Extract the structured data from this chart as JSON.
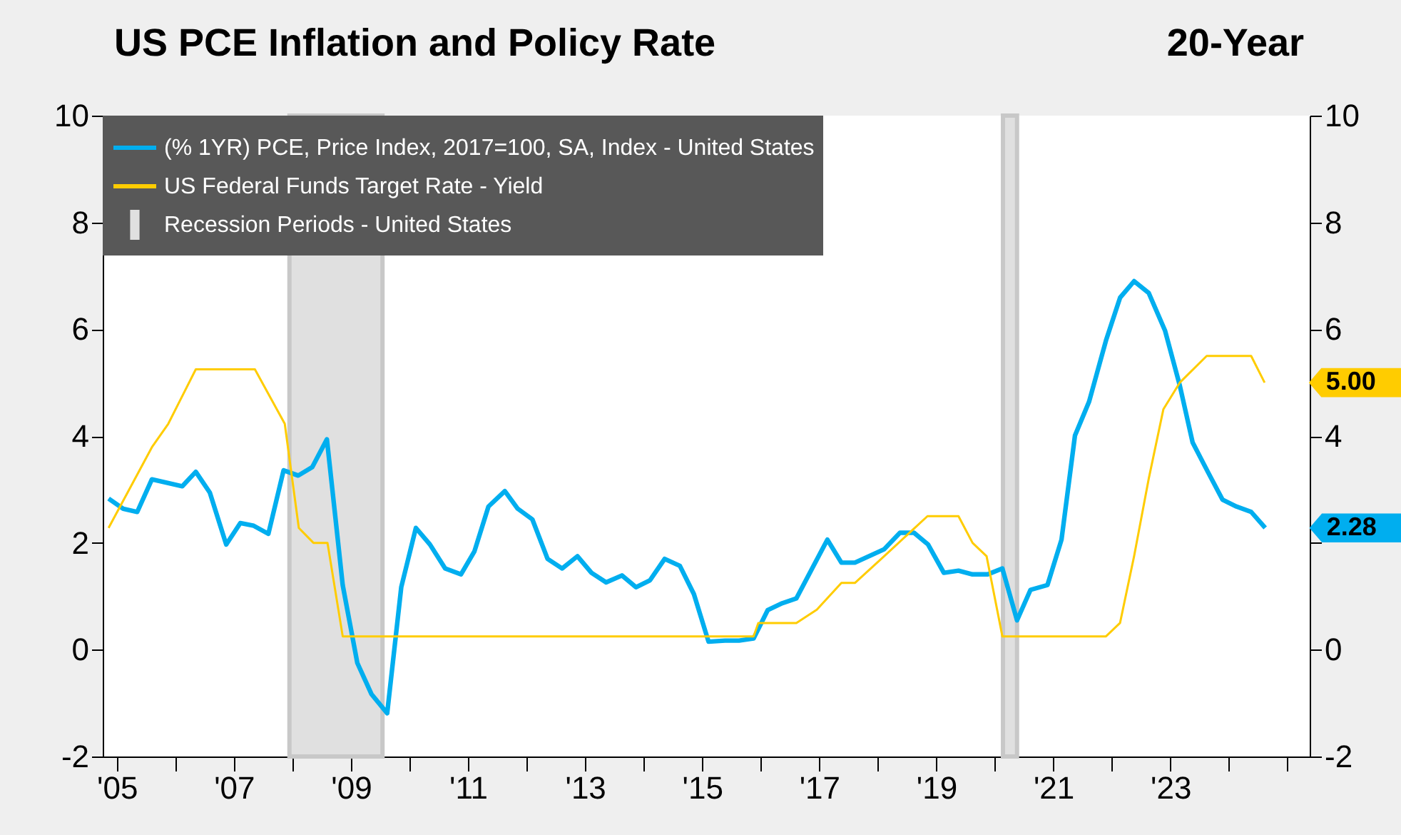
{
  "chart_data": {
    "type": "line",
    "title": "US PCE Inflation and Policy Rate",
    "subtitle": "20-Year",
    "xlim": [
      2004.76,
      2025.38
    ],
    "xticks": [
      {
        "value": 2005,
        "label": "'05"
      },
      {
        "value": 2006,
        "label": null
      },
      {
        "value": 2007,
        "label": "'07"
      },
      {
        "value": 2008,
        "label": null
      },
      {
        "value": 2009,
        "label": "'09"
      },
      {
        "value": 2010,
        "label": null
      },
      {
        "value": 2011,
        "label": "'11"
      },
      {
        "value": 2012,
        "label": null
      },
      {
        "value": 2013,
        "label": "'13"
      },
      {
        "value": 2014,
        "label": null
      },
      {
        "value": 2015,
        "label": "'15"
      },
      {
        "value": 2016,
        "label": null
      },
      {
        "value": 2017,
        "label": "'17"
      },
      {
        "value": 2018,
        "label": null
      },
      {
        "value": 2019,
        "label": "'19"
      },
      {
        "value": 2020,
        "label": null
      },
      {
        "value": 2021,
        "label": "'21"
      },
      {
        "value": 2022,
        "label": null
      },
      {
        "value": 2023,
        "label": "'23"
      },
      {
        "value": 2024,
        "label": null
      },
      {
        "value": 2025,
        "label": null
      }
    ],
    "ylim": [
      -2,
      10
    ],
    "yticks": [
      -2,
      0,
      2,
      4,
      6,
      8,
      10
    ],
    "y2lim": [
      -2,
      10
    ],
    "y2ticks": [
      -2,
      0,
      {
        "value": 2,
        "label": null
      },
      4,
      6,
      8,
      10
    ],
    "legend": "top left",
    "grid": false,
    "annotations": [
      {
        "text": "5.00",
        "x": 2024.61,
        "y": 5.0
      },
      {
        "text": "2.28",
        "x": 2024.62,
        "y": 2.28
      }
    ],
    "series": [
      {
        "name": "(% 1YR) PCE, Price Index, 2017=100, SA, Index - United States",
        "color": "#00aeef",
        "x": [
          2004.86,
          2005.11,
          2005.35,
          2005.6,
          2005.88,
          2006.12,
          2006.35,
          2006.59,
          2006.87,
          2007.11,
          2007.34,
          2007.59,
          2007.85,
          2008.1,
          2008.34,
          2008.59,
          2008.86,
          2009.11,
          2009.35,
          2009.62,
          2009.86,
          2010.11,
          2010.35,
          2010.61,
          2010.88,
          2011.11,
          2011.35,
          2011.63,
          2011.85,
          2012.1,
          2012.36,
          2012.61,
          2012.87,
          2013.11,
          2013.36,
          2013.63,
          2013.87,
          2014.11,
          2014.36,
          2014.62,
          2014.86,
          2015.11,
          2015.39,
          2015.63,
          2015.88,
          2016.12,
          2016.37,
          2016.61,
          2016.88,
          2017.14,
          2017.38,
          2017.61,
          2017.87,
          2018.11,
          2018.38,
          2018.62,
          2018.86,
          2019.13,
          2019.38,
          2019.62,
          2019.88,
          2020.13,
          2020.38,
          2020.61,
          2020.9,
          2021.14,
          2021.37,
          2021.61,
          2021.9,
          2022.14,
          2022.38,
          2022.63,
          2022.91,
          2023.16,
          2023.38,
          2023.63,
          2023.89,
          2024.13,
          2024.38,
          2024.62
        ],
        "values": [
          2.83,
          2.64,
          2.58,
          3.19,
          3.12,
          3.06,
          3.33,
          2.94,
          1.97,
          2.37,
          2.32,
          2.17,
          3.36,
          3.26,
          3.42,
          3.94,
          1.21,
          -0.25,
          -0.83,
          -1.19,
          1.17,
          2.28,
          1.97,
          1.52,
          1.41,
          1.84,
          2.68,
          2.97,
          2.64,
          2.44,
          1.7,
          1.52,
          1.75,
          1.44,
          1.26,
          1.39,
          1.17,
          1.3,
          1.7,
          1.57,
          1.04,
          0.15,
          0.17,
          0.17,
          0.21,
          0.74,
          0.87,
          0.96,
          1.52,
          2.06,
          1.63,
          1.63,
          1.76,
          1.88,
          2.19,
          2.19,
          1.97,
          1.44,
          1.48,
          1.41,
          1.41,
          1.52,
          0.55,
          1.12,
          1.21,
          2.06,
          4.01,
          4.64,
          5.79,
          6.59,
          6.9,
          6.68,
          5.97,
          4.95,
          3.88,
          3.35,
          2.81,
          2.68,
          2.58,
          2.28
        ]
      },
      {
        "name": "US Federal Funds Target Rate - Yield",
        "color": "#ffcc00",
        "x": [
          2004.86,
          2005.6,
          2005.88,
          2006.35,
          2007.36,
          2007.87,
          2008.11,
          2008.36,
          2008.6,
          2008.86,
          2015.88,
          2015.96,
          2016.61,
          2016.96,
          2017.38,
          2017.61,
          2018.11,
          2018.85,
          2019.38,
          2019.62,
          2019.86,
          2020.13,
          2021.9,
          2022.14,
          2022.38,
          2022.63,
          2022.88,
          2023.16,
          2023.62,
          2024.38,
          2024.61
        ],
        "values": [
          2.28,
          3.79,
          4.23,
          5.25,
          5.25,
          4.23,
          2.28,
          2.0,
          2.0,
          0.25,
          0.25,
          0.5,
          0.5,
          0.75,
          1.25,
          1.25,
          1.75,
          2.5,
          2.5,
          2.0,
          1.75,
          0.25,
          0.25,
          0.5,
          1.75,
          3.2,
          4.5,
          5.0,
          5.5,
          5.5,
          5.0
        ]
      }
    ],
    "bands": [
      {
        "axis": "x",
        "from": 2007.95,
        "to": 2009.54,
        "label": "Recession Periods - United States",
        "color": "#e0e0e0"
      },
      {
        "axis": "x",
        "from": 2020.14,
        "to": 2020.38,
        "label": null,
        "color": "#e0e0e0"
      }
    ]
  }
}
